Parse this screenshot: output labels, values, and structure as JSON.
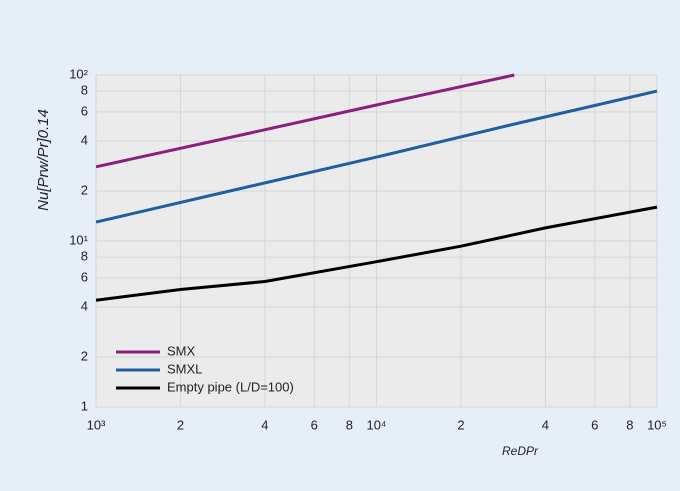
{
  "chart_data": {
    "type": "line",
    "log_x": true,
    "log_y": true,
    "grid": true,
    "legend": "lower left",
    "x_label": "ReDPr",
    "y_label": "Nu[Prw/Pr]0.14",
    "xlim": [
      1000,
      100000
    ],
    "xticks": [
      {
        "value": 1000,
        "label": "10³"
      },
      {
        "value": 2000,
        "label": "2"
      },
      {
        "value": 4000,
        "label": "4"
      },
      {
        "value": 6000,
        "label": "6"
      },
      {
        "value": 8000,
        "label": "8"
      },
      {
        "value": 10000,
        "label": "10⁴"
      },
      {
        "value": 20000,
        "label": "2"
      },
      {
        "value": 40000,
        "label": "4"
      },
      {
        "value": 60000,
        "label": "6"
      },
      {
        "value": 80000,
        "label": "8"
      },
      {
        "value": 100000,
        "label": "10⁵"
      }
    ],
    "ylim": [
      1,
      100
    ],
    "yticks": [
      1,
      2,
      4,
      6,
      8,
      {
        "value": 10,
        "label": "10¹"
      },
      {
        "value": 20,
        "label": "2"
      },
      {
        "value": 40,
        "label": "4"
      },
      {
        "value": 60,
        "label": "6"
      },
      {
        "value": 80,
        "label": "8"
      },
      {
        "value": 100,
        "label": "10²"
      }
    ],
    "series": [
      {
        "name": "SMX",
        "color": "#8b1f80",
        "x": [
          1000,
          3000,
          10000,
          31000
        ],
        "values": [
          28,
          42,
          66,
          100
        ]
      },
      {
        "name": "SMXL",
        "color": "#1f5ea0",
        "x": [
          1000,
          3000,
          10000,
          30000,
          100000
        ],
        "values": [
          13,
          20,
          32,
          50,
          80
        ]
      },
      {
        "name": "Empty pipe (L/D=100)",
        "color": "#000000",
        "x": [
          1000,
          2000,
          4000,
          10000,
          20000,
          40000,
          100000
        ],
        "values": [
          4.4,
          5.1,
          5.7,
          7.5,
          9.3,
          12,
          16
        ]
      }
    ]
  }
}
